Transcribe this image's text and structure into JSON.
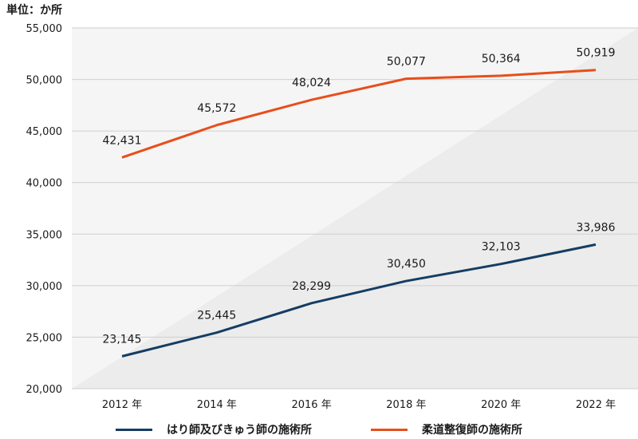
{
  "unit_label": "単位：か所",
  "colors": {
    "series_1": "#153d63",
    "series_2": "#e84e1b",
    "grid": "#cfcfcf",
    "plot_bg": "#f5f5f5",
    "plot_bg_diagonal": "#ececec"
  },
  "chart_data": {
    "type": "line",
    "x_tick_labels": [
      "2012 年",
      "2014 年",
      "2016 年",
      "2018 年",
      "2020 年",
      "2022 年"
    ],
    "x": [
      2012,
      2014,
      2016,
      2018,
      2020,
      2022
    ],
    "ylim": [
      20000,
      55000
    ],
    "y_ticks": [
      20000,
      25000,
      30000,
      35000,
      40000,
      45000,
      50000,
      55000
    ],
    "y_tick_labels": [
      "20,000",
      "25,000",
      "30,000",
      "35,000",
      "40,000",
      "45,000",
      "50,000",
      "55,000"
    ],
    "grid": true,
    "legend_position": "bottom-center",
    "series": [
      {
        "name": "はり師及びきゅう師の施術所",
        "color": "#153d63",
        "values": [
          23145,
          25445,
          28299,
          30450,
          32103,
          33986
        ],
        "labels": [
          "23,145",
          "25,445",
          "28,299",
          "30,450",
          "32,103",
          "33,986"
        ]
      },
      {
        "name": "柔道整復師の施術所",
        "color": "#e84e1b",
        "values": [
          42431,
          45572,
          48024,
          50077,
          50364,
          50919
        ],
        "labels": [
          "42,431",
          "45,572",
          "48,024",
          "50,077",
          "50,364",
          "50,919"
        ]
      }
    ]
  }
}
